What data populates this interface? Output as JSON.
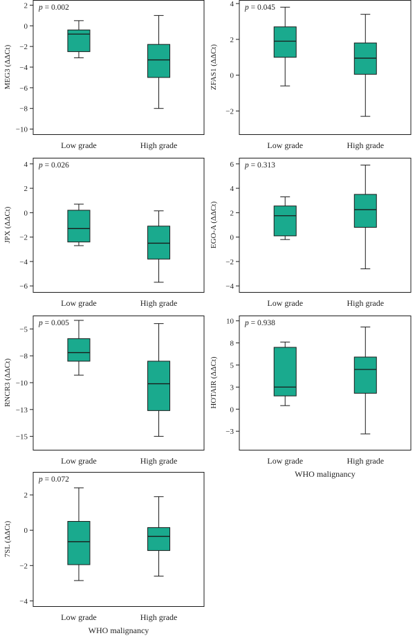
{
  "figure": {
    "box_color": "#1aaa8e",
    "line_color": "#1a1a1a",
    "pvalue_symbol": "p"
  },
  "chart_data": [
    {
      "type": "box",
      "ylabel": "MEG3 (ΔΔCt)",
      "pvalue": "= 0.002",
      "xlabel": "",
      "categories": [
        "Low grade",
        "High grade"
      ],
      "ylim": [
        -10.5,
        2.5
      ],
      "yticks": [
        2,
        0,
        -2,
        -4,
        -6,
        -8,
        -10
      ],
      "ytick_labels": [
        "2",
        "0",
        "−2",
        "−4",
        "−6",
        "−8",
        "−10"
      ],
      "boxes": [
        {
          "whisker_low": -3.1,
          "q1": -2.5,
          "median": -0.8,
          "q3": -0.4,
          "whisker_high": 0.5
        },
        {
          "whisker_low": -8.0,
          "q1": -5.0,
          "median": -3.3,
          "q3": -1.8,
          "whisker_high": 1.0
        }
      ]
    },
    {
      "type": "box",
      "ylabel": "ZFAS1 (ΔΔCt)",
      "pvalue": "= 0.045",
      "xlabel": "",
      "categories": [
        "Low grade",
        "High grade"
      ],
      "ylim": [
        -3.3,
        4.2
      ],
      "yticks": [
        4,
        2,
        0,
        -2
      ],
      "ytick_labels": [
        "4",
        "2",
        "0",
        "−2"
      ],
      "boxes": [
        {
          "whisker_low": -0.6,
          "q1": 1.0,
          "median": 1.9,
          "q3": 2.7,
          "whisker_high": 3.8
        },
        {
          "whisker_low": -2.3,
          "q1": 0.05,
          "median": 0.95,
          "q3": 1.8,
          "whisker_high": 3.4
        }
      ]
    },
    {
      "type": "box",
      "ylabel": "JPX (ΔΔCt)",
      "pvalue": "= 0.026",
      "xlabel": "",
      "categories": [
        "Low grade",
        "High grade"
      ],
      "ylim": [
        -6.5,
        4.5
      ],
      "yticks": [
        4,
        2,
        0,
        -2,
        -4,
        -6
      ],
      "ytick_labels": [
        "4",
        "2",
        "0",
        "−2",
        "−4",
        "−6"
      ],
      "boxes": [
        {
          "whisker_low": -2.7,
          "q1": -2.4,
          "median": -1.3,
          "q3": 0.2,
          "whisker_high": 0.7
        },
        {
          "whisker_low": -5.7,
          "q1": -3.8,
          "median": -2.5,
          "q3": -1.1,
          "whisker_high": 0.15
        }
      ]
    },
    {
      "type": "box",
      "ylabel": "EGO-A (ΔΔCt)",
      "pvalue": "= 0.313",
      "xlabel": "",
      "categories": [
        "Low grade",
        "High grade"
      ],
      "ylim": [
        -4.5,
        6.5
      ],
      "yticks": [
        6,
        4,
        2,
        0,
        -2,
        -4
      ],
      "ytick_labels": [
        "6",
        "4",
        "2",
        "0",
        "−2",
        "−4"
      ],
      "boxes": [
        {
          "whisker_low": -0.2,
          "q1": 0.1,
          "median": 1.75,
          "q3": 2.55,
          "whisker_high": 3.3
        },
        {
          "whisker_low": -2.6,
          "q1": 0.8,
          "median": 2.25,
          "q3": 3.5,
          "whisker_high": 5.9
        }
      ]
    },
    {
      "type": "box",
      "ylabel": "RNCR3 (ΔΔCt)",
      "pvalue": "= 0.005",
      "xlabel": "",
      "categories": [
        "Low grade",
        "High grade"
      ],
      "ylim": [
        -16.25,
        -3.75
      ],
      "yticks": [
        -5,
        -7.5,
        -10,
        -12.5,
        -15
      ],
      "ytick_labels": [
        "−5",
        "−8",
        "−10",
        "−13",
        "−15"
      ],
      "boxes": [
        {
          "whisker_low": -9.3,
          "q1": -8.0,
          "median": -7.2,
          "q3": -5.9,
          "whisker_high": -4.2
        },
        {
          "whisker_low": -15.0,
          "q1": -12.6,
          "median": -10.1,
          "q3": -8.0,
          "whisker_high": -4.5
        }
      ]
    },
    {
      "type": "box",
      "ylabel": "HOTAIR (ΔΔCt)",
      "pvalue": "= 0.938",
      "xlabel": "WHO malignancy",
      "categories": [
        "Low grade",
        "High grade"
      ],
      "ylim": [
        -4.6,
        10.6
      ],
      "yticks": [
        10,
        7.5,
        5,
        2.5,
        0,
        -2.5
      ],
      "ytick_labels": [
        "10",
        "8",
        "5",
        "3",
        "0",
        "−3"
      ],
      "boxes": [
        {
          "whisker_low": 0.4,
          "q1": 1.5,
          "median": 2.5,
          "q3": 7.0,
          "whisker_high": 7.6
        },
        {
          "whisker_low": -2.8,
          "q1": 1.8,
          "median": 4.5,
          "q3": 5.9,
          "whisker_high": 9.3
        }
      ]
    },
    {
      "type": "box",
      "ylabel": "7SL (ΔΔCt)",
      "pvalue": "= 0.072",
      "xlabel": "WHO malignancy",
      "categories": [
        "Low grade",
        "High grade"
      ],
      "ylim": [
        -4.3,
        3.3
      ],
      "yticks": [
        2,
        0,
        -2,
        -4
      ],
      "ytick_labels": [
        "2",
        "0",
        "−2",
        "−4"
      ],
      "boxes": [
        {
          "whisker_low": -2.85,
          "q1": -1.95,
          "median": -0.65,
          "q3": 0.5,
          "whisker_high": 2.4
        },
        {
          "whisker_low": -2.6,
          "q1": -1.15,
          "median": -0.35,
          "q3": 0.15,
          "whisker_high": 1.9
        }
      ]
    }
  ]
}
